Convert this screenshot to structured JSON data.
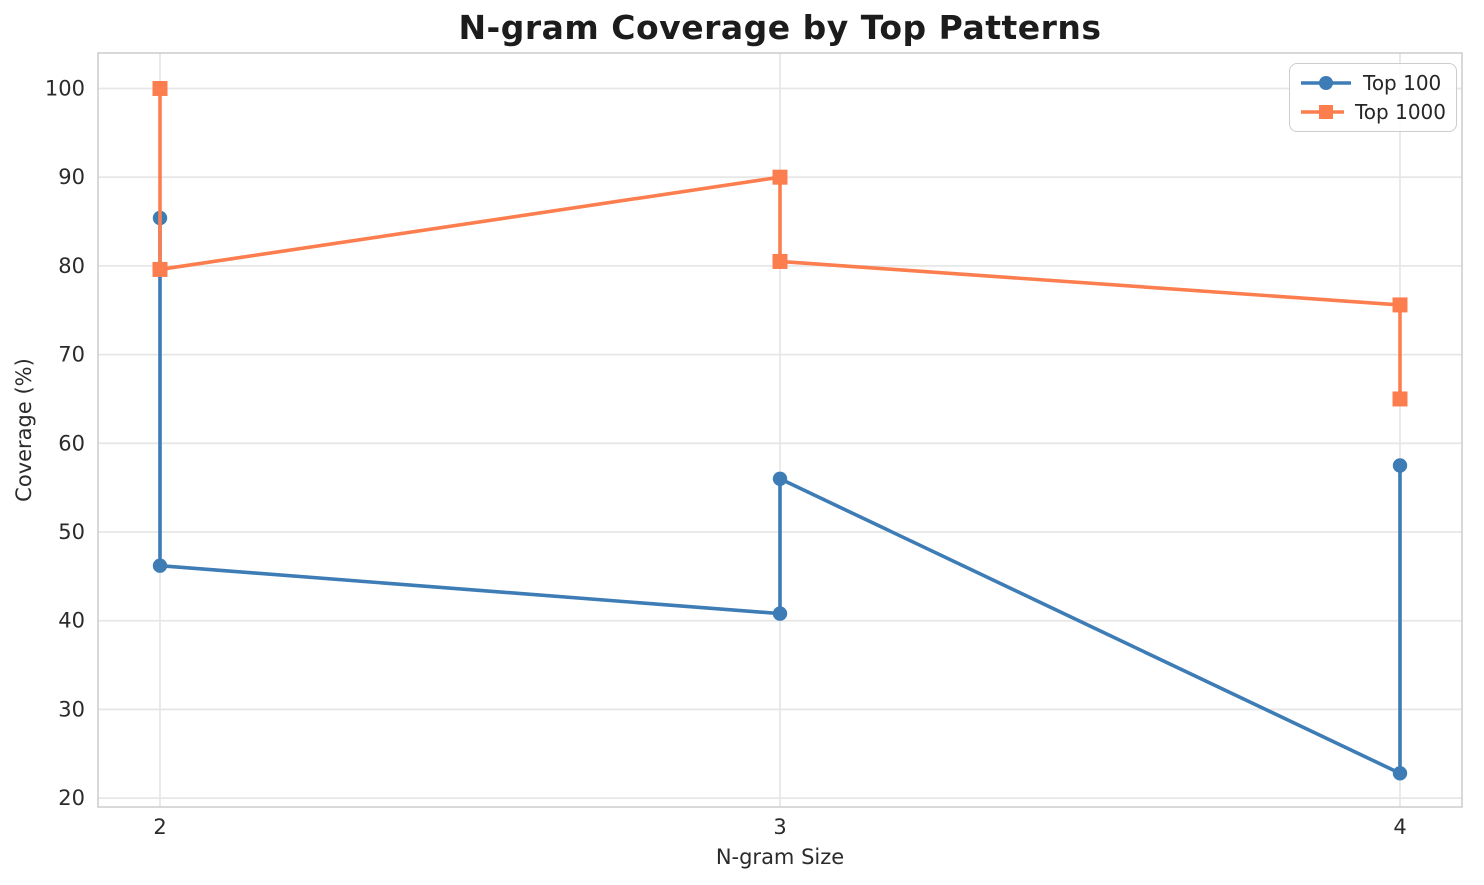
{
  "chart_data": {
    "type": "line",
    "title": "N-gram Coverage by Top Patterns",
    "xlabel": "N-gram Size",
    "ylabel": "Coverage (%)",
    "xlim": [
      1.9,
      4.1
    ],
    "ylim": [
      19,
      104
    ],
    "xticks": [
      2,
      3,
      4
    ],
    "yticks": [
      20,
      30,
      40,
      50,
      60,
      70,
      80,
      90,
      100
    ],
    "grid": true,
    "grid_color": "#e7e7e7",
    "frame_color": "#cccccc",
    "tick_label_color": "#2b2b2b",
    "legend_position": "upper right",
    "series": [
      {
        "name": "Top 100",
        "color": "#3d7cb5",
        "marker": "circle",
        "points": [
          [
            2,
            85.4
          ],
          [
            2,
            46.2
          ],
          [
            3,
            40.8
          ],
          [
            3,
            56.0
          ],
          [
            4,
            22.8
          ],
          [
            4,
            57.5
          ]
        ]
      },
      {
        "name": "Top 1000",
        "color": "#fc7e4f",
        "marker": "square",
        "points": [
          [
            2,
            100.0
          ],
          [
            2,
            79.6
          ],
          [
            3,
            90.0
          ],
          [
            3,
            80.5
          ],
          [
            4,
            75.6
          ],
          [
            4,
            65.0
          ]
        ]
      }
    ]
  }
}
